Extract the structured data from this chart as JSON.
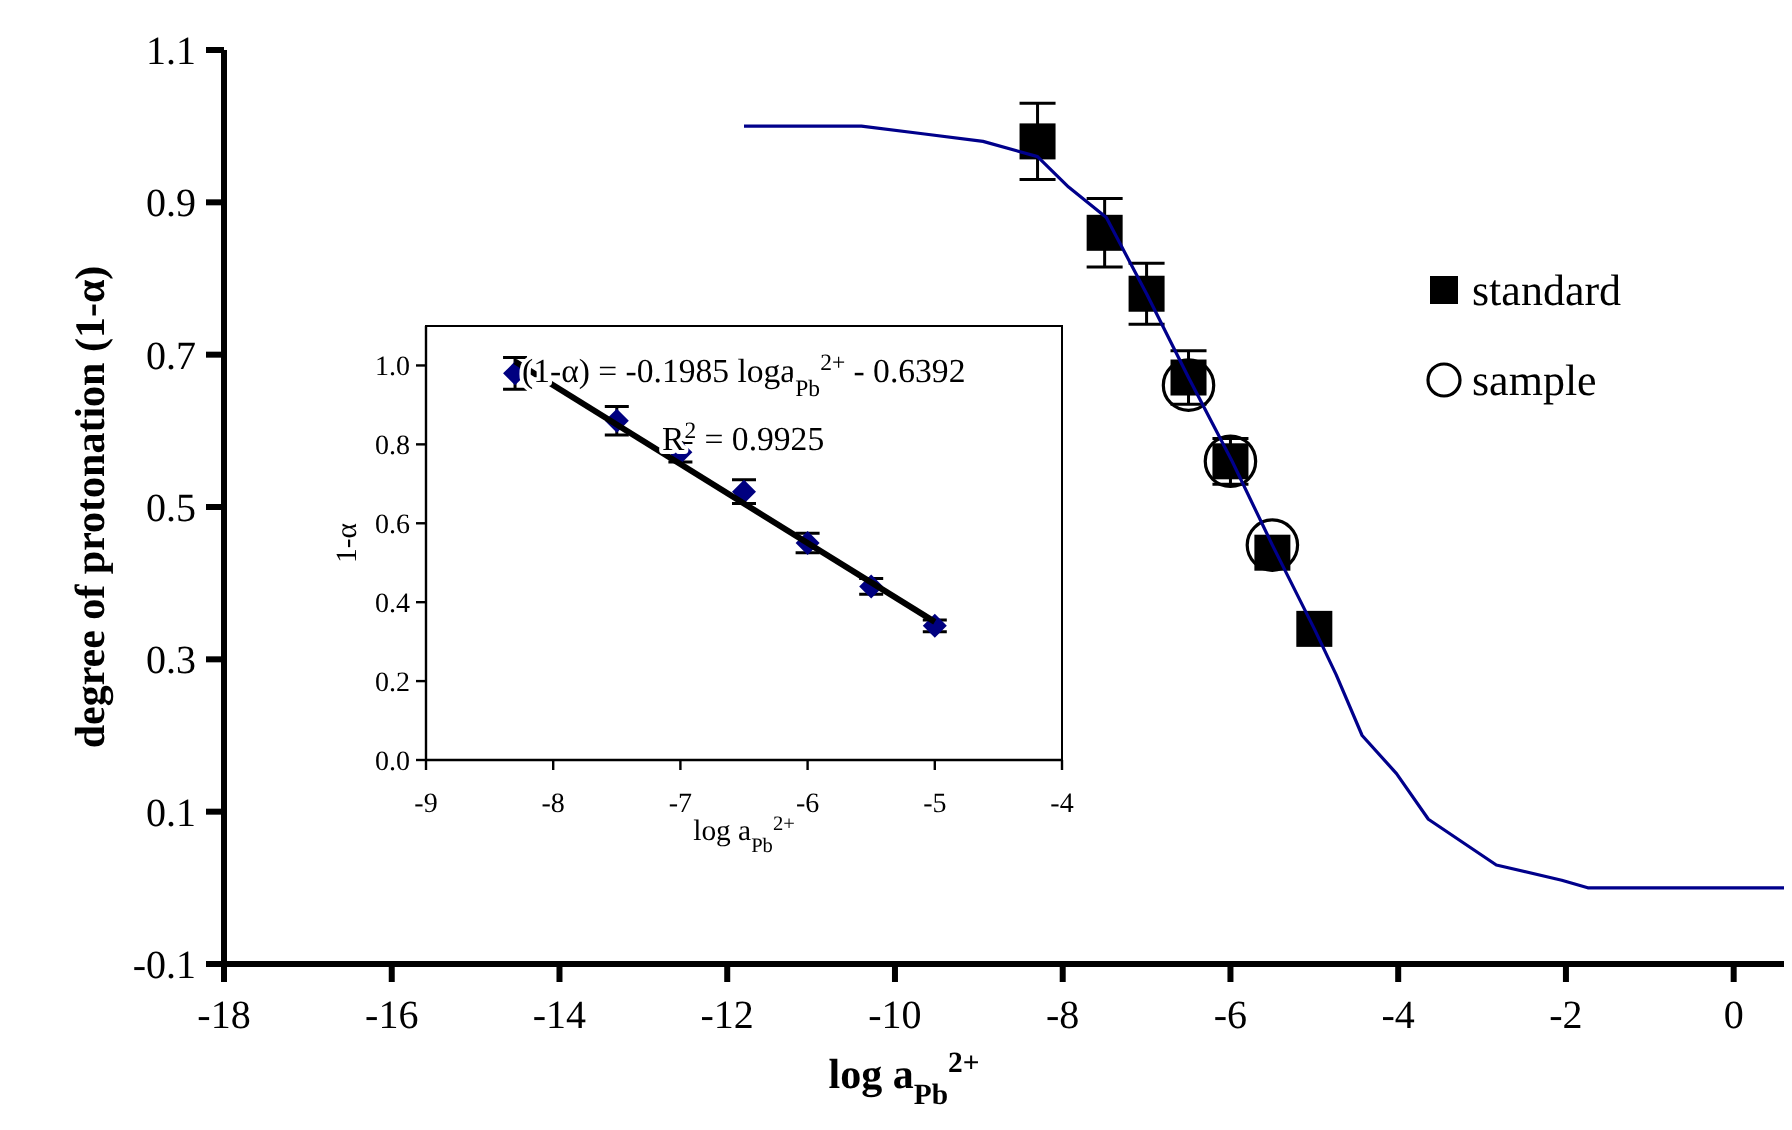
{
  "chart_data": [
    {
      "type": "scatter",
      "xlabel": "log a$_{Pb}$$^{2+}$",
      "ylabel": "degree of protonation (1-α)",
      "xlim": [
        -18,
        0.6
      ],
      "ylim": [
        -0.1,
        1.1
      ],
      "xticks": [
        -18,
        -16,
        -14,
        -12,
        -10,
        -8,
        -6,
        -4,
        -2,
        0
      ],
      "yticks": [
        -0.1,
        0.1,
        0.3,
        0.5,
        0.7,
        0.9,
        1.1
      ],
      "legend": "top right",
      "series": [
        {
          "type": "line",
          "color": "#00008b",
          "x": [
            -11.8,
            -10.4,
            -9.67,
            -8.95,
            -8.3,
            -7.93,
            -7.48,
            -7.0,
            -6.5,
            -5.98,
            -5.5,
            -5.0,
            -4.74,
            -4.43,
            -4.02,
            -3.64,
            -2.83,
            -2.05,
            -1.74,
            -1.1,
            0.6
          ],
          "values": [
            1.0,
            1.0,
            0.99,
            0.98,
            0.96,
            0.92,
            0.88,
            0.78,
            0.67,
            0.56,
            0.45,
            0.34,
            0.28,
            0.2,
            0.15,
            0.09,
            0.03,
            0.01,
            0.0,
            0.0,
            0.0
          ]
        },
        {
          "type": "scatter",
          "name": "standard",
          "color": "#000000",
          "marker": "square",
          "x": [
            -8.3,
            -7.5,
            -7.0,
            -6.5,
            -6.0,
            -5.5,
            -5.0
          ],
          "values": [
            0.98,
            0.86,
            0.78,
            0.67,
            0.56,
            0.44,
            0.34
          ],
          "errors": [
            0.05,
            0.045,
            0.04,
            0.035,
            0.03,
            null,
            null
          ]
        },
        {
          "type": "scatter",
          "name": "sample",
          "color": "#000000",
          "marker": "circle",
          "x": [
            -6.5,
            -6.0,
            -5.5
          ],
          "values": [
            0.66,
            0.56,
            0.45
          ]
        }
      ]
    },
    {
      "type": "scatter",
      "xlabel": "log a$_{Pb}$$^{2+}$",
      "ylabel": "1-α",
      "xlim": [
        -9,
        -4
      ],
      "ylim": [
        0,
        1.1
      ],
      "xticks": [
        -9,
        -8,
        -7,
        -6,
        -5,
        -4
      ],
      "yticks": [
        {
          "value": 0,
          "label": "0.0"
        },
        {
          "value": 0.2,
          "label": "0.2"
        },
        {
          "value": 0.4,
          "label": "0.4"
        },
        {
          "value": 0.6,
          "label": "0.6"
        },
        {
          "value": 0.8,
          "label": "0.8"
        },
        {
          "value": 1.0,
          "label": "1.0"
        }
      ],
      "annotations": [
        "(1-α) = -0.1985 loga$_{Pb}$$^{2+}$ - 0.6392",
        "R$^{2}$ = 0.9925"
      ],
      "series": [
        {
          "type": "scatter",
          "color": "#000080",
          "marker": "diamond",
          "x": [
            -8.3,
            -7.5,
            -7.0,
            -6.5,
            -6.0,
            -5.5,
            -5.0
          ],
          "values": [
            0.98,
            0.86,
            0.78,
            0.68,
            0.55,
            0.44,
            0.34
          ],
          "errors": [
            0.04,
            0.036,
            0.025,
            0.03,
            0.025,
            0.02,
            0.015
          ]
        },
        {
          "type": "line",
          "color": "#000000",
          "x": [
            -8.3,
            -5.0
          ],
          "values": [
            1.01,
            0.35
          ]
        }
      ]
    }
  ]
}
